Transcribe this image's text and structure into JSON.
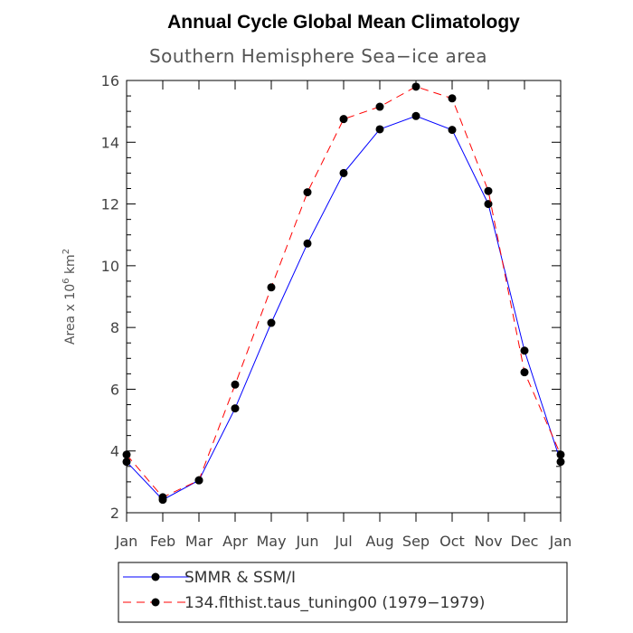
{
  "chart_data": {
    "type": "line",
    "title": "Annual Cycle Global Mean Climatology",
    "subtitle": "Southern Hemisphere Sea−ice area",
    "ylabel_prefix": "Area x 10",
    "ylabel_exp": "6",
    "ylabel_unit": " km",
    "ylabel_unit_exp": "2",
    "categories": [
      "Jan",
      "Feb",
      "Mar",
      "Apr",
      "May",
      "Jun",
      "Jul",
      "Aug",
      "Sep",
      "Oct",
      "Nov",
      "Dec",
      "Jan"
    ],
    "ylim": [
      2,
      16
    ],
    "yticks": [
      2,
      4,
      6,
      8,
      10,
      12,
      14,
      16
    ],
    "series": [
      {
        "name": "SMMR & SSM/I",
        "color": "#0000ff",
        "dash": "solid",
        "values": [
          3.65,
          2.42,
          3.05,
          5.38,
          8.15,
          10.72,
          13.0,
          14.42,
          14.85,
          14.4,
          12.0,
          7.25,
          3.65
        ]
      },
      {
        "name": "134.flthist.taus_tuning00 (1979−1979)",
        "color": "#ff0000",
        "dash": "dashed",
        "values": [
          3.88,
          2.5,
          3.05,
          6.15,
          9.3,
          12.38,
          14.75,
          15.15,
          15.8,
          15.42,
          12.42,
          6.55,
          3.88
        ]
      }
    ]
  }
}
